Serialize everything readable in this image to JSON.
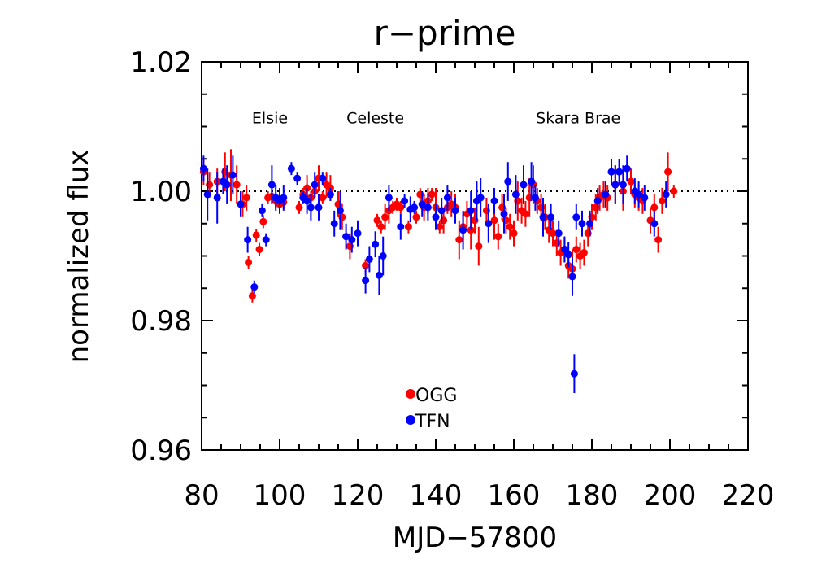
{
  "chart_data": {
    "type": "scatter",
    "title": "r−prime",
    "xlabel": "MJD−57800",
    "ylabel": "normalized flux",
    "xlim": [
      80,
      220
    ],
    "ylim": [
      0.96,
      1.02
    ],
    "x_ticks": [
      "80",
      "100",
      "120",
      "140",
      "160",
      "180",
      "200",
      "220"
    ],
    "y_ticks": [
      "0.96",
      "0.98",
      "1.00",
      "1.02"
    ],
    "reference_line": 1.0,
    "annotations": [
      {
        "text": "Elsie",
        "x": 97.5,
        "y": 1.0105
      },
      {
        "text": "Celeste",
        "x": 124.5,
        "y": 1.0105
      },
      {
        "text": "Skara Brae",
        "x": 176.5,
        "y": 1.0105
      }
    ],
    "legend": [
      "OGG",
      "TFN"
    ],
    "series": [
      {
        "name": "OGG",
        "color": "#ff0000",
        "points": [
          [
            80.5,
            1.003,
            0.002
          ],
          [
            82.0,
            1.001,
            0.002
          ],
          [
            84.0,
            1.0015,
            0.002
          ],
          [
            86.0,
            1.003,
            0.003
          ],
          [
            87.5,
            1.0025,
            0.004
          ],
          [
            89.0,
            1.001,
            0.003
          ],
          [
            90.5,
            0.998,
            0.002
          ],
          [
            91.5,
            0.999,
            0.002
          ],
          [
            92.0,
            0.989,
            0.001
          ],
          [
            93.0,
            0.9838,
            0.001
          ],
          [
            94.0,
            0.9932,
            0.001
          ],
          [
            94.8,
            0.991,
            0.001
          ],
          [
            95.8,
            0.9953,
            0.001
          ],
          [
            97.0,
            0.999,
            0.001
          ],
          [
            98.0,
            0.9992,
            0.001
          ],
          [
            99.0,
            0.9985,
            0.001
          ],
          [
            100.0,
            0.998,
            0.001
          ],
          [
            101.0,
            0.9983,
            0.001
          ],
          [
            105.0,
            0.9975,
            0.001
          ],
          [
            106.0,
            0.9995,
            0.001
          ],
          [
            107.0,
            1.0005,
            0.002
          ],
          [
            108.0,
            0.999,
            0.001
          ],
          [
            109.0,
            1.0,
            0.001
          ],
          [
            110.0,
            1.002,
            0.002
          ],
          [
            111.0,
            0.999,
            0.001
          ],
          [
            112.0,
            1.001,
            0.002
          ],
          [
            113.0,
            1.0005,
            0.002
          ],
          [
            115.0,
            0.998,
            0.002
          ],
          [
            116.0,
            0.996,
            0.002
          ],
          [
            118.0,
            0.9915,
            0.002
          ],
          [
            122.0,
            0.9885,
            0.001
          ],
          [
            125.0,
            0.9955,
            0.001
          ],
          [
            126.0,
            0.9945,
            0.001
          ],
          [
            127.0,
            0.996,
            0.002
          ],
          [
            128.0,
            0.997,
            0.002
          ],
          [
            129.0,
            0.9975,
            0.001
          ],
          [
            130.0,
            0.998,
            0.001
          ],
          [
            131.0,
            0.9975,
            0.001
          ],
          [
            133.0,
            0.9945,
            0.001
          ],
          [
            135.0,
            0.996,
            0.001
          ],
          [
            136.0,
            0.9995,
            0.001
          ],
          [
            137.0,
            0.9975,
            0.002
          ],
          [
            138.0,
            0.9985,
            0.002
          ],
          [
            139.0,
            0.9995,
            0.001
          ],
          [
            140.0,
            0.9975,
            0.003
          ],
          [
            141.0,
            0.9945,
            0.001
          ],
          [
            142.0,
            0.9955,
            0.002
          ],
          [
            143.0,
            0.9975,
            0.001
          ],
          [
            144.0,
            0.998,
            0.002
          ],
          [
            145.0,
            0.9975,
            0.002
          ],
          [
            146.0,
            0.9925,
            0.003
          ],
          [
            147.0,
            0.9945,
            0.002
          ],
          [
            148.0,
            0.9965,
            0.002
          ],
          [
            149.0,
            0.994,
            0.003
          ],
          [
            150.0,
            0.9955,
            0.002
          ],
          [
            151.0,
            0.9915,
            0.003
          ],
          [
            153.0,
            0.997,
            0.002
          ],
          [
            155.0,
            0.9955,
            0.003
          ],
          [
            156.0,
            0.993,
            0.002
          ],
          [
            157.0,
            0.9975,
            0.002
          ],
          [
            158.0,
            0.9955,
            0.002
          ],
          [
            159.0,
            0.9945,
            0.002
          ],
          [
            160.0,
            0.9935,
            0.002
          ],
          [
            161.0,
            0.9985,
            0.003
          ],
          [
            162.0,
            0.997,
            0.002
          ],
          [
            163.0,
            0.9965,
            0.002
          ],
          [
            164.0,
            0.999,
            0.003
          ],
          [
            165.0,
            1.001,
            0.003
          ],
          [
            166.0,
            0.9985,
            0.002
          ],
          [
            167.0,
            0.9975,
            0.002
          ],
          [
            168.0,
            0.996,
            0.002
          ],
          [
            169.0,
            0.994,
            0.002
          ],
          [
            170.0,
            0.9935,
            0.002
          ],
          [
            171.0,
            0.992,
            0.002
          ],
          [
            172.0,
            0.9905,
            0.002
          ],
          [
            173.0,
            0.991,
            0.002
          ],
          [
            174.0,
            0.9885,
            0.002
          ],
          [
            175.0,
            0.988,
            0.003
          ],
          [
            176.0,
            0.991,
            0.002
          ],
          [
            177.0,
            0.99,
            0.002
          ],
          [
            178.0,
            0.9905,
            0.002
          ],
          [
            179.0,
            0.9935,
            0.002
          ],
          [
            180.0,
            0.996,
            0.002
          ],
          [
            181.0,
            0.9975,
            0.002
          ],
          [
            182.0,
            0.999,
            0.002
          ],
          [
            183.0,
            0.9995,
            0.002
          ],
          [
            184.0,
            0.999,
            0.002
          ],
          [
            186.0,
            1.001,
            0.003
          ],
          [
            188.0,
            1.0,
            0.003
          ],
          [
            190.0,
            1.0015,
            0.002
          ],
          [
            191.0,
            0.9995,
            0.002
          ],
          [
            192.0,
            0.999,
            0.002
          ],
          [
            193.0,
            0.9985,
            0.002
          ],
          [
            195.0,
            0.9955,
            0.002
          ],
          [
            196.0,
            0.9975,
            0.002
          ],
          [
            197.0,
            0.9925,
            0.002
          ],
          [
            198.0,
            0.9985,
            0.002
          ],
          [
            199.5,
            1.003,
            0.003
          ],
          [
            201.0,
            1.0,
            0.001
          ]
        ]
      },
      {
        "name": "TFN",
        "color": "#0000ff",
        "points": [
          [
            80.5,
            1.0035,
            0.002
          ],
          [
            81.5,
            0.9995,
            0.004
          ],
          [
            84.0,
            0.999,
            0.004
          ],
          [
            85.5,
            1.0015,
            0.002
          ],
          [
            86.5,
            1.001,
            0.003
          ],
          [
            88.0,
            1.0025,
            0.003
          ],
          [
            90.0,
            0.998,
            0.002
          ],
          [
            91.8,
            0.9925,
            0.002
          ],
          [
            93.5,
            0.9852,
            0.001
          ],
          [
            95.5,
            0.997,
            0.001
          ],
          [
            96.5,
            0.9925,
            0.001
          ],
          [
            98.0,
            1.001,
            0.003
          ],
          [
            99.0,
            0.999,
            0.002
          ],
          [
            100.0,
            0.9985,
            0.002
          ],
          [
            101.0,
            0.999,
            0.002
          ],
          [
            103.0,
            1.0035,
            0.001
          ],
          [
            104.5,
            1.002,
            0.001
          ],
          [
            106.0,
            0.999,
            0.001
          ],
          [
            107.0,
            0.9985,
            0.002
          ],
          [
            108.0,
            0.9975,
            0.002
          ],
          [
            109.0,
            1.001,
            0.002
          ],
          [
            110.0,
            0.9975,
            0.002
          ],
          [
            111.0,
            1.002,
            0.001
          ],
          [
            113.0,
            0.9995,
            0.001
          ],
          [
            114.0,
            0.995,
            0.002
          ],
          [
            115.5,
            0.997,
            0.003
          ],
          [
            117.0,
            0.993,
            0.002
          ],
          [
            118.5,
            0.9925,
            0.002
          ],
          [
            120.0,
            0.9935,
            0.002
          ],
          [
            122.0,
            0.9862,
            0.002
          ],
          [
            123.0,
            0.9895,
            0.002
          ],
          [
            124.5,
            0.9918,
            0.002
          ],
          [
            125.5,
            0.987,
            0.003
          ],
          [
            126.5,
            0.99,
            0.003
          ],
          [
            128.0,
            0.999,
            0.002
          ],
          [
            131.0,
            0.9945,
            0.002
          ],
          [
            132.0,
            0.9985,
            0.001
          ],
          [
            133.5,
            0.9972,
            0.002
          ],
          [
            134.5,
            0.9975,
            0.001
          ],
          [
            136.5,
            0.998,
            0.002
          ],
          [
            138.0,
            0.9975,
            0.002
          ],
          [
            140.0,
            0.996,
            0.002
          ],
          [
            141.5,
            0.997,
            0.002
          ],
          [
            143.0,
            0.999,
            0.002
          ],
          [
            145.0,
            0.997,
            0.002
          ],
          [
            147.0,
            0.994,
            0.003
          ],
          [
            149.0,
            0.997,
            0.003
          ],
          [
            150.5,
            0.9985,
            0.003
          ],
          [
            151.5,
            0.999,
            0.003
          ],
          [
            153.5,
            0.995,
            0.003
          ],
          [
            155.0,
            0.9985,
            0.002
          ],
          [
            157.5,
            0.9965,
            0.003
          ],
          [
            158.5,
            1.0015,
            0.003
          ],
          [
            160.5,
            0.9995,
            0.003
          ],
          [
            162.5,
            1.001,
            0.003
          ],
          [
            164.5,
            1.0015,
            0.003
          ],
          [
            165.5,
            0.999,
            0.002
          ],
          [
            167.5,
            0.996,
            0.003
          ],
          [
            169.5,
            0.996,
            0.002
          ],
          [
            171.5,
            0.9935,
            0.002
          ],
          [
            173.0,
            0.991,
            0.002
          ],
          [
            174.0,
            0.9902,
            0.002
          ],
          [
            175.0,
            0.9868,
            0.003
          ],
          [
            175.5,
            0.9718,
            0.003
          ],
          [
            176.0,
            0.996,
            0.002
          ],
          [
            177.5,
            0.995,
            0.002
          ],
          [
            179.5,
            0.995,
            0.002
          ],
          [
            181.5,
            0.9985,
            0.002
          ],
          [
            183.5,
            0.9995,
            0.002
          ],
          [
            185.0,
            1.003,
            0.002
          ],
          [
            186.0,
            1.001,
            0.003
          ],
          [
            187.0,
            1.003,
            0.002
          ],
          [
            188.0,
            1.001,
            0.003
          ],
          [
            189.0,
            1.0035,
            0.002
          ],
          [
            191.0,
            1.0,
            0.002
          ],
          [
            192.0,
            0.9995,
            0.002
          ],
          [
            193.5,
            0.999,
            0.002
          ],
          [
            196.0,
            0.995,
            0.002
          ],
          [
            199.0,
            0.9995,
            0.002
          ]
        ]
      }
    ]
  }
}
